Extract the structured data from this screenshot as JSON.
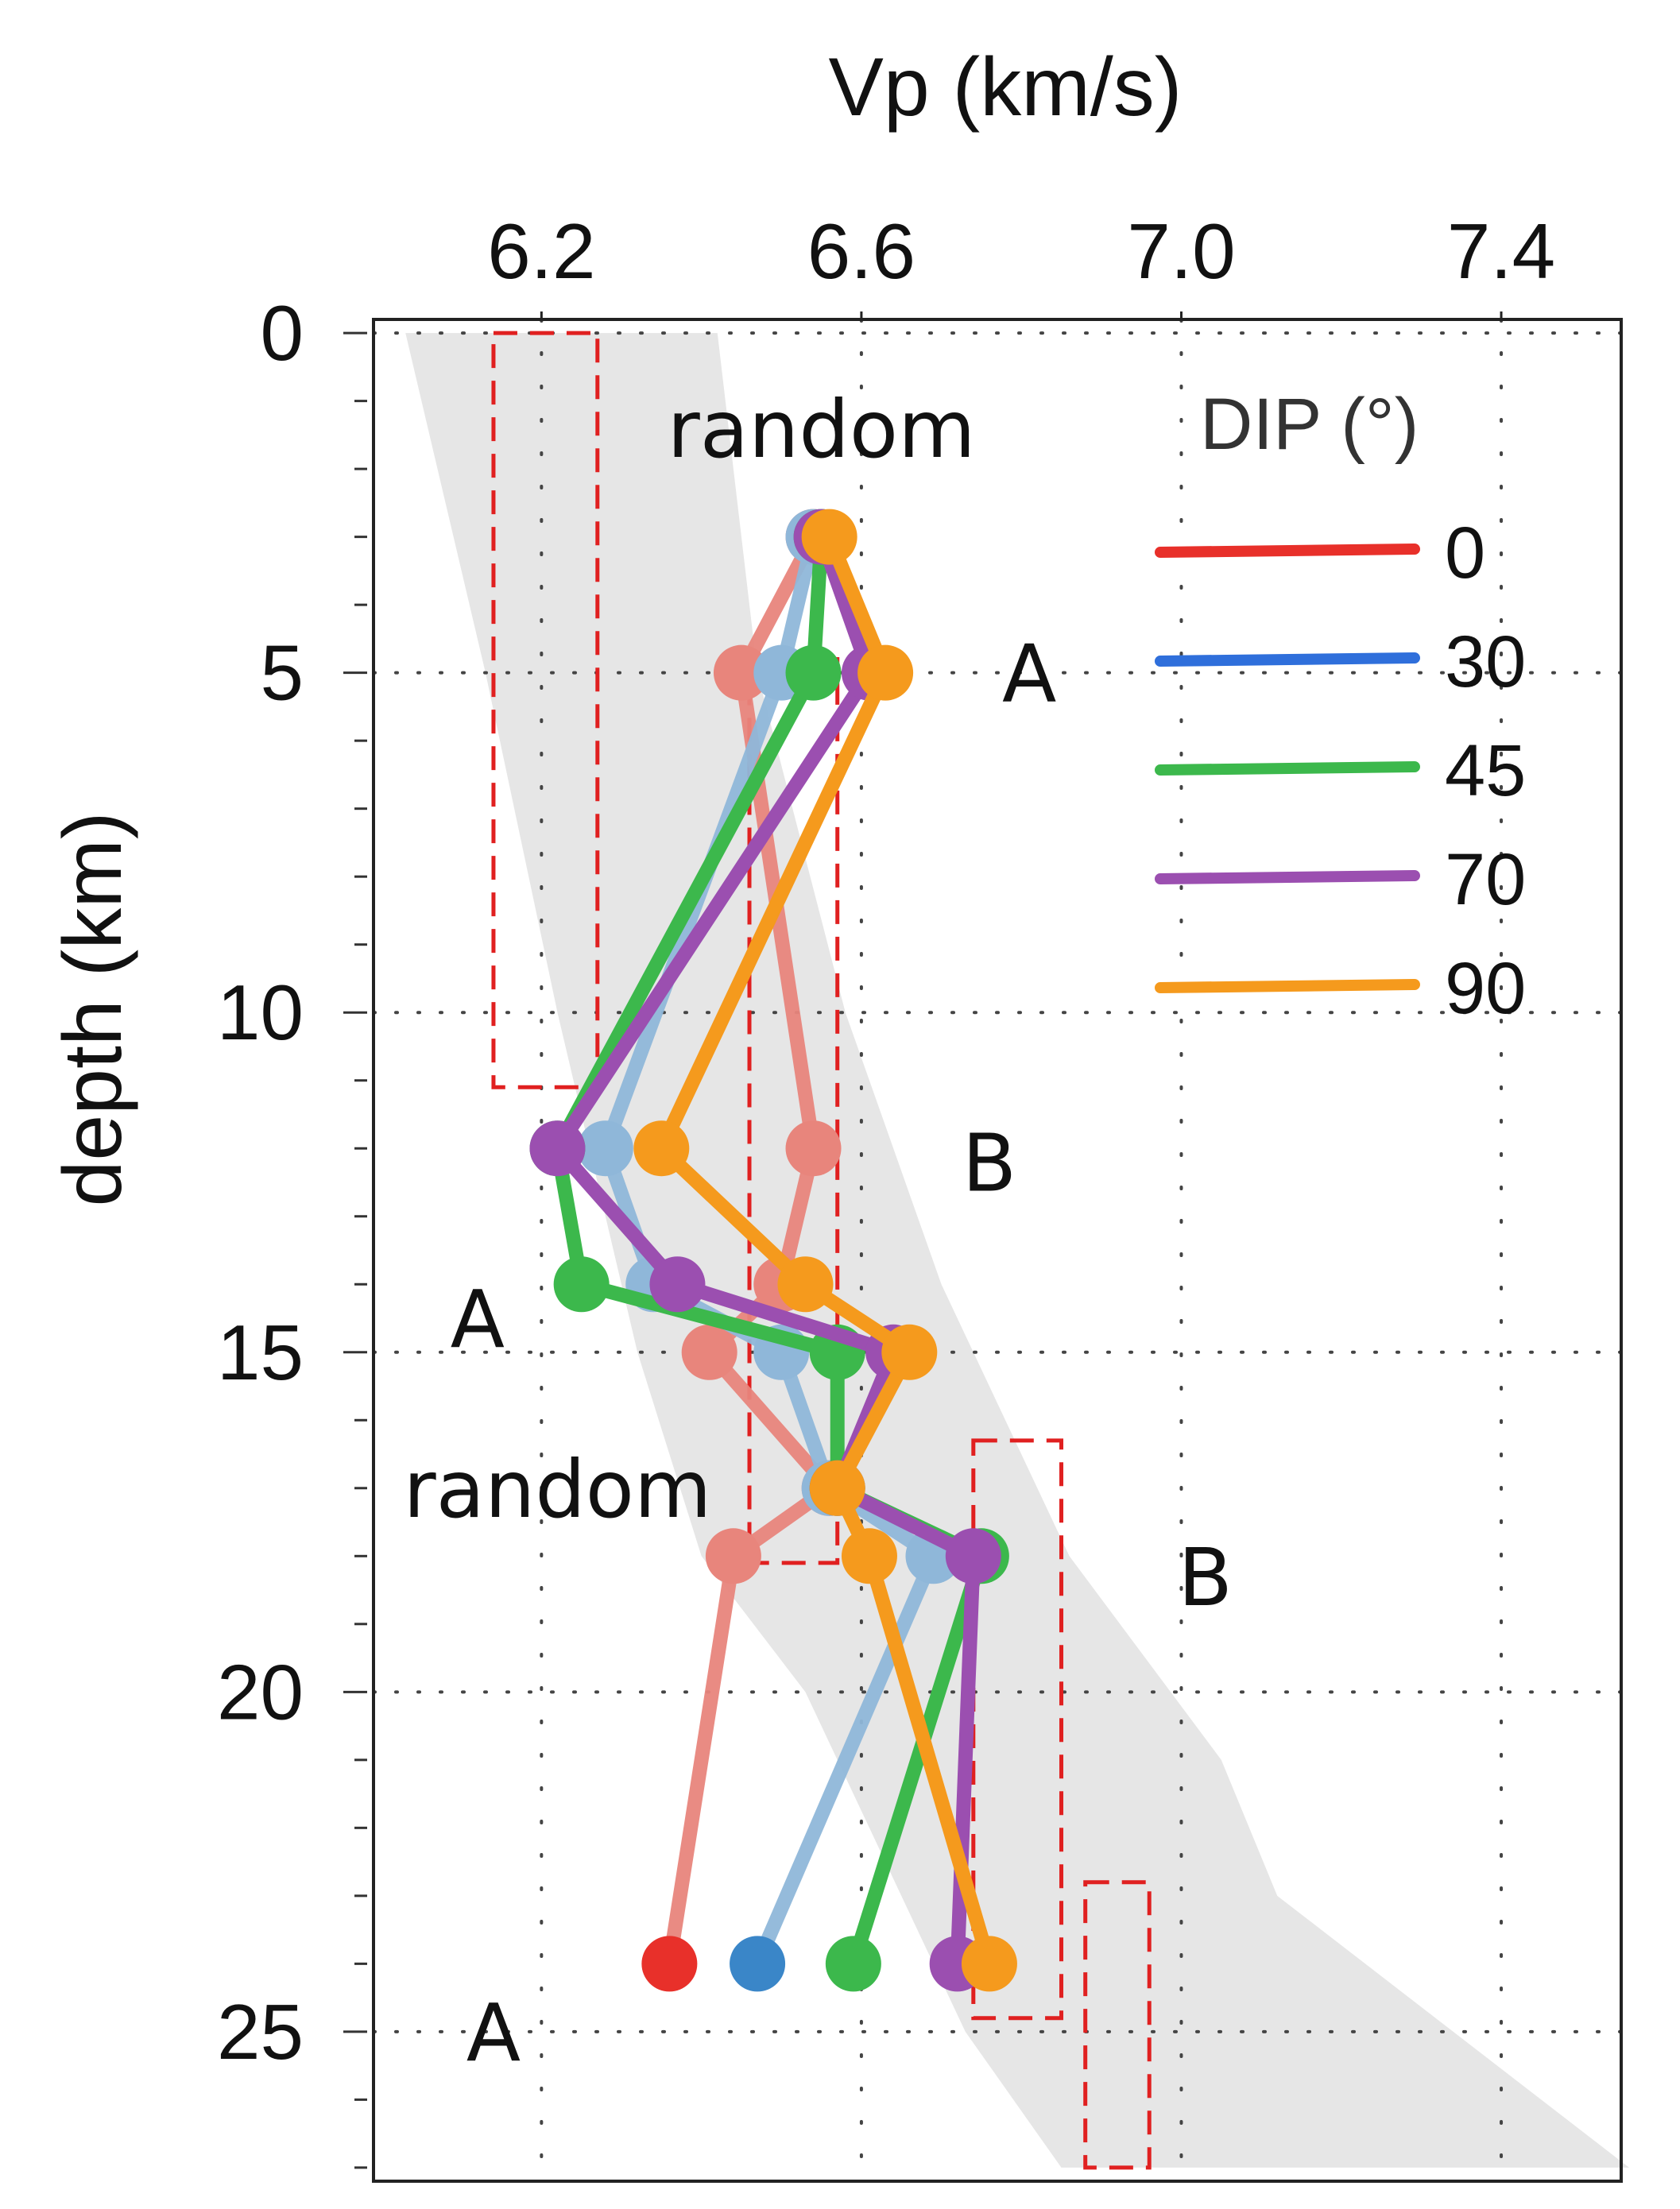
{
  "chart_data": {
    "type": "line",
    "orientation": "vertical-profile",
    "x_axis": {
      "label": "Vp (km/s)",
      "position": "top",
      "range": [
        5.99,
        7.55
      ],
      "ticks": [
        6.2,
        6.6,
        7.0,
        7.4
      ],
      "tick_labels": [
        "6.2",
        "6.6",
        "7.0",
        "7.4"
      ]
    },
    "y_axis": {
      "label": "depth (km)",
      "range": [
        -0.2,
        27.2
      ],
      "inverted": true,
      "ticks": [
        0,
        5,
        10,
        15,
        20,
        25
      ],
      "tick_labels": [
        "0",
        "5",
        "10",
        "15",
        "20",
        "25"
      ],
      "minor_step": 1
    },
    "grid": "dotted",
    "legend": {
      "title": "DIP (°)",
      "placement": "top-right",
      "entries": [
        {
          "label": "0",
          "color": "#e8302a"
        },
        {
          "label": "30",
          "color": "#2f6fdb"
        },
        {
          "label": "45",
          "color": "#3cb84c"
        },
        {
          "label": "70",
          "color": "#9b4fb0"
        },
        {
          "label": "90",
          "color": "#f59a1d"
        }
      ]
    },
    "reference_band": {
      "left": [
        [
          6.03,
          0
        ],
        [
          6.13,
          5
        ],
        [
          6.22,
          10
        ],
        [
          6.32,
          15
        ],
        [
          6.4,
          18
        ],
        [
          6.53,
          20
        ],
        [
          6.73,
          25
        ],
        [
          6.85,
          27
        ]
      ],
      "right": [
        [
          6.42,
          0
        ],
        [
          6.47,
          5
        ],
        [
          6.58,
          10
        ],
        [
          6.7,
          14
        ],
        [
          6.86,
          18
        ],
        [
          7.05,
          21
        ],
        [
          7.12,
          23
        ],
        [
          7.56,
          27
        ]
      ],
      "color": "#e6e6e6"
    },
    "series": [
      {
        "name": "0",
        "color": "#e8302a",
        "faded_color": "#e8857c",
        "points": [
          [
            6.54,
            3
          ],
          [
            6.45,
            5
          ],
          [
            6.54,
            12
          ],
          [
            6.5,
            14
          ],
          [
            6.41,
            15
          ],
          [
            6.56,
            17
          ],
          [
            6.44,
            18
          ],
          [
            6.36,
            24
          ]
        ],
        "bold_from": 7
      },
      {
        "name": "30",
        "color": "#3a86c8",
        "faded_color": "#8fb7d9",
        "points": [
          [
            6.54,
            3
          ],
          [
            6.5,
            5
          ],
          [
            6.28,
            12
          ],
          [
            6.34,
            14
          ],
          [
            6.5,
            15
          ],
          [
            6.56,
            17
          ],
          [
            6.69,
            18
          ],
          [
            6.47,
            24
          ]
        ],
        "bold_from": 7
      },
      {
        "name": "45",
        "color": "#3cb84c",
        "faded_color": "#8fd08f",
        "points": [
          [
            6.55,
            3
          ],
          [
            6.54,
            5
          ],
          [
            6.22,
            12
          ],
          [
            6.25,
            14
          ],
          [
            6.57,
            15
          ],
          [
            6.57,
            17
          ],
          [
            6.75,
            18
          ],
          [
            6.59,
            24
          ]
        ],
        "bold_from": 0
      },
      {
        "name": "70",
        "color": "#9b4fb0",
        "faded_color": "#c2a0cc",
        "points": [
          [
            6.55,
            3
          ],
          [
            6.61,
            5
          ],
          [
            6.22,
            12
          ],
          [
            6.37,
            14
          ],
          [
            6.64,
            15
          ],
          [
            6.57,
            17
          ],
          [
            6.74,
            18
          ],
          [
            6.72,
            24
          ]
        ],
        "bold_from": 0
      },
      {
        "name": "90",
        "color": "#f59a1d",
        "faded_color": "#f2bd7a",
        "points": [
          [
            6.56,
            3
          ],
          [
            6.63,
            5
          ],
          [
            6.35,
            12
          ],
          [
            6.53,
            14
          ],
          [
            6.66,
            15
          ],
          [
            6.57,
            17
          ],
          [
            6.61,
            18
          ],
          [
            6.76,
            24
          ]
        ],
        "bold_from": 0
      }
    ],
    "dashed_boxes": [
      {
        "x": [
          6.14,
          6.27
        ],
        "y": [
          0,
          11.1
        ]
      },
      {
        "x": [
          6.46,
          6.57
        ],
        "y": [
          4.8,
          18.1
        ]
      },
      {
        "x": [
          6.74,
          6.85
        ],
        "y": [
          16.3,
          24.8
        ]
      },
      {
        "x": [
          6.88,
          6.96
        ],
        "y": [
          22.8,
          27.0
        ]
      }
    ],
    "annotations": [
      {
        "text": "random",
        "x": 6.55,
        "y": 1.4
      },
      {
        "text": "A",
        "x": 6.81,
        "y": 5.0
      },
      {
        "text": "B",
        "x": 6.76,
        "y": 12.2
      },
      {
        "text": "A",
        "x": 6.12,
        "y": 14.5
      },
      {
        "text": "random",
        "x": 6.22,
        "y": 17.0
      },
      {
        "text": "B",
        "x": 7.03,
        "y": 18.3
      },
      {
        "text": "A",
        "x": 6.14,
        "y": 25.0
      }
    ]
  }
}
